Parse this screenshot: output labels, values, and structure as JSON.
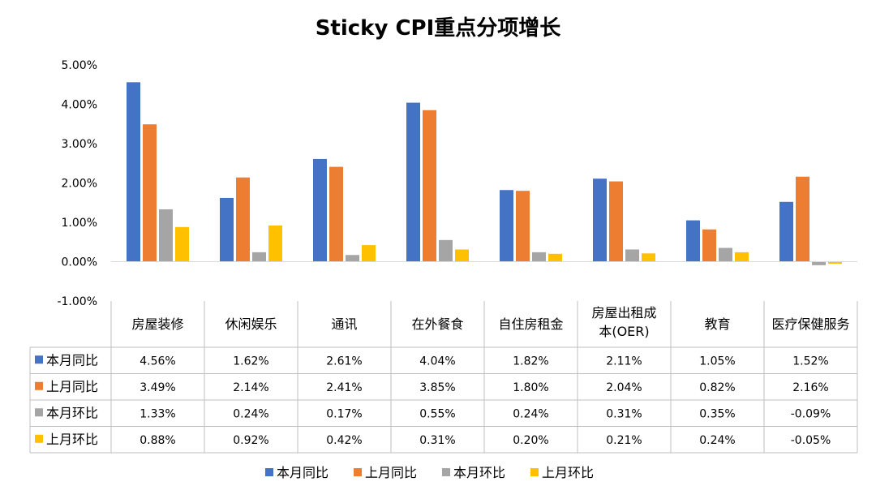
{
  "chart_data": {
    "type": "bar",
    "title": "Sticky CPI重点分项增长",
    "categories": [
      "房屋装修",
      "休闲娱乐",
      "通讯",
      "在外餐食",
      "自住房租金",
      "房屋出租成本(OER)",
      "教育",
      "医疗保健服务"
    ],
    "series": [
      {
        "name": "本月同比",
        "color": "#4472C4",
        "values": [
          4.56,
          1.62,
          2.61,
          4.04,
          1.82,
          2.11,
          1.05,
          1.52
        ],
        "labels": [
          "4.56%",
          "1.62%",
          "2.61%",
          "4.04%",
          "1.82%",
          "2.11%",
          "1.05%",
          "1.52%"
        ]
      },
      {
        "name": "上月同比",
        "color": "#ED7D31",
        "values": [
          3.49,
          2.14,
          2.41,
          3.85,
          1.8,
          2.04,
          0.82,
          2.16
        ],
        "labels": [
          "3.49%",
          "2.14%",
          "2.41%",
          "3.85%",
          "1.80%",
          "2.04%",
          "0.82%",
          "2.16%"
        ]
      },
      {
        "name": "本月环比",
        "color": "#A5A5A5",
        "values": [
          1.33,
          0.24,
          0.17,
          0.55,
          0.24,
          0.31,
          0.35,
          -0.09
        ],
        "labels": [
          "1.33%",
          "0.24%",
          "0.17%",
          "0.55%",
          "0.24%",
          "0.31%",
          "0.35%",
          "-0.09%"
        ]
      },
      {
        "name": "上月环比",
        "color": "#FFC000",
        "values": [
          0.88,
          0.92,
          0.42,
          0.31,
          0.2,
          0.21,
          0.24,
          -0.05
        ],
        "labels": [
          "0.88%",
          "0.92%",
          "0.42%",
          "0.31%",
          "0.20%",
          "0.21%",
          "0.24%",
          "-0.05%"
        ]
      }
    ],
    "yticks": [
      "5.00%",
      "4.00%",
      "3.00%",
      "2.00%",
      "1.00%",
      "0.00%",
      "-1.00%"
    ],
    "ytick_values": [
      5,
      4,
      3,
      2,
      1,
      0,
      -1
    ],
    "ylim": [
      -1,
      5
    ],
    "grid": false,
    "legend_position": "bottom",
    "data_table": true
  }
}
